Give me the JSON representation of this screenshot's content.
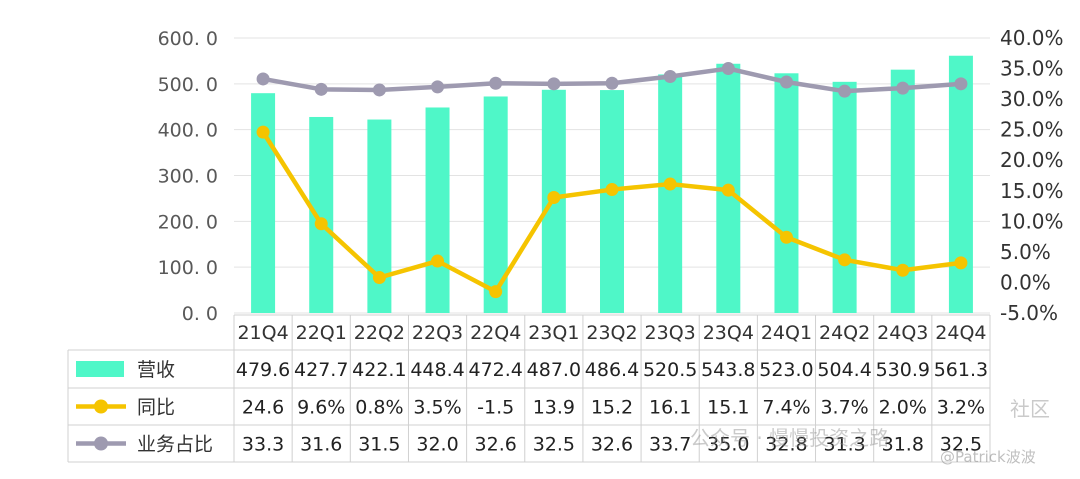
{
  "chart_data": {
    "type": "bar",
    "categories": [
      "21Q4",
      "22Q1",
      "22Q2",
      "22Q3",
      "22Q4",
      "23Q1",
      "23Q2",
      "23Q3",
      "23Q4",
      "24Q1",
      "24Q2",
      "24Q3",
      "24Q4"
    ],
    "series": [
      {
        "name": "营收",
        "type": "bar",
        "axis": "left",
        "values": [
          479.6,
          427.7,
          422.1,
          448.4,
          472.4,
          487.0,
          486.4,
          520.5,
          543.8,
          523.0,
          504.4,
          530.9,
          561.3
        ],
        "labels": [
          "479.6",
          "427.7",
          "422.1",
          "448.4",
          "472.4",
          "487.0",
          "486.4",
          "520.5",
          "543.8",
          "523.0",
          "504.4",
          "530.9",
          "561.3"
        ],
        "color": "#4ff7c8"
      },
      {
        "name": "同比",
        "type": "line",
        "axis": "right",
        "values": [
          24.6,
          9.6,
          0.8,
          3.5,
          -1.5,
          13.9,
          15.2,
          16.1,
          15.1,
          7.4,
          3.7,
          2.0,
          3.2
        ],
        "labels": [
          "24.6",
          "9.6%",
          "0.8%",
          "3.5%",
          "-1.5",
          "13.9",
          "15.2",
          "16.1",
          "15.1",
          "7.4%",
          "3.7%",
          "2.0%",
          "3.2%"
        ],
        "color": "#f5c400"
      },
      {
        "name": "业务占比",
        "type": "line",
        "axis": "right",
        "values": [
          33.3,
          31.6,
          31.5,
          32.0,
          32.6,
          32.5,
          32.6,
          33.7,
          35.0,
          32.8,
          31.3,
          31.8,
          32.5
        ],
        "labels": [
          "33.3",
          "31.6",
          "31.5",
          "32.0",
          "32.6",
          "32.5",
          "32.6",
          "33.7",
          "35.0",
          "32.8",
          "31.3",
          "31.8",
          "32.5"
        ],
        "color": "#9e9ab0"
      }
    ],
    "y_left": {
      "ylim": [
        0,
        600
      ],
      "ticks": [
        0,
        100,
        200,
        300,
        400,
        500,
        600
      ],
      "tick_labels": [
        "0. 0",
        "100. 0",
        "200. 0",
        "300. 0",
        "400. 0",
        "500. 0",
        "600. 0"
      ]
    },
    "y_right": {
      "ylim": [
        -5,
        40
      ],
      "ticks": [
        -5,
        0,
        5,
        10,
        15,
        20,
        25,
        30,
        35,
        40
      ],
      "tick_labels": [
        "-5.0%",
        "0.0%",
        "5.0%",
        "10.0%",
        "15.0%",
        "20.0%",
        "25.0%",
        "30.0%",
        "35.0%",
        "40.0%"
      ]
    },
    "grid": true,
    "legend": "table-left",
    "data_table": true
  },
  "watermark": {
    "line1": "公众号 · 慢慢投资之路",
    "line2": "@Patrick波波",
    "corner": "社区"
  }
}
